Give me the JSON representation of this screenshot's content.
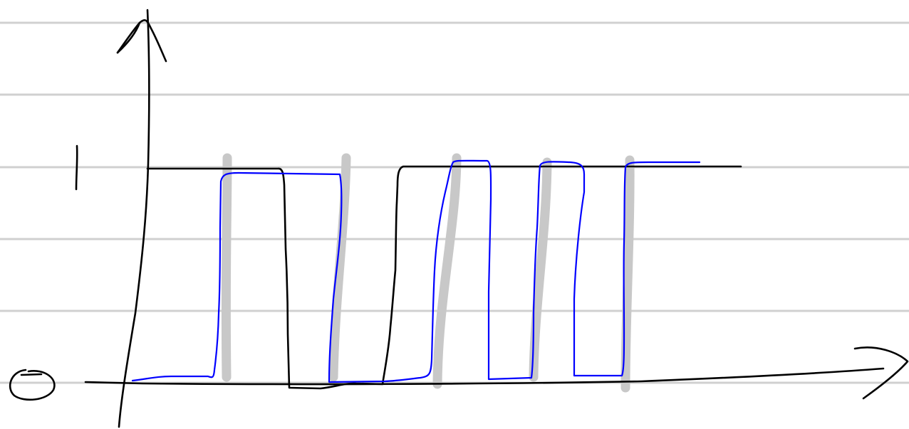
{
  "diagram": {
    "y_label_top": "1",
    "y_label_bottom": "0",
    "colors": {
      "rule_lines": "#d0d0d0",
      "ink_black": "#000000",
      "ink_blue": "#0000ff",
      "ink_gray": "#c8c8c8",
      "background": "#ffffff"
    },
    "icons": [
      "arrow-up-icon",
      "arrow-right-icon"
    ]
  }
}
